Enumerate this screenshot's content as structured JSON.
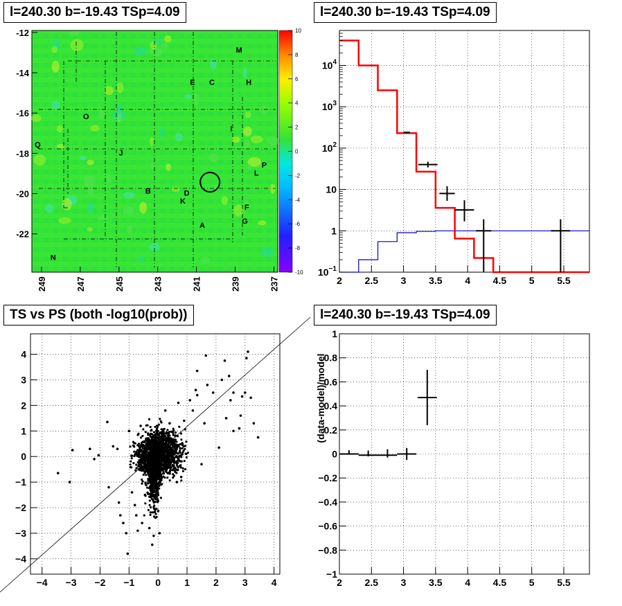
{
  "panels": {
    "map_title": "l=240.30 b=-19.43 TSp=4.09",
    "spectrum_title": "l=240.30 b=-19.43 TSp=4.09",
    "scatter_title": "TS vs PS (both -log10(prob))",
    "residual_title": "l=240.30 b=-19.43 TSp=4.09"
  },
  "chart_data": [
    {
      "type": "heatmap",
      "title": "l=240.30 b=-19.43 TSp=4.09",
      "xlim": [
        249.5,
        236.8
      ],
      "ylim": [
        -23.9,
        -11.9
      ],
      "x_ticks": [
        "249",
        "247",
        "245",
        "243",
        "241",
        "239",
        "237"
      ],
      "y_ticks": [
        "-12",
        "-14",
        "-16",
        "-18",
        "-20",
        "-22"
      ],
      "colorbar": {
        "range": [
          -10,
          10
        ],
        "ticks": [
          "10",
          "8",
          "6",
          "4",
          "2",
          "0",
          "-2",
          "-4",
          "-6",
          "-8",
          "-10"
        ]
      },
      "colors": {
        "background": "#32e632",
        "circle": "#000000"
      },
      "marker_circle": {
        "l": 240.3,
        "b": -19.43
      },
      "sources": [
        {
          "label": "M",
          "l": 238.8,
          "b": -12.9
        },
        {
          "label": "E",
          "l": 241.2,
          "b": -14.5
        },
        {
          "label": "C",
          "l": 240.2,
          "b": -14.5
        },
        {
          "label": "H",
          "l": 238.3,
          "b": -14.5
        },
        {
          "label": "O",
          "l": 246.7,
          "b": -16.2
        },
        {
          "label": "I",
          "l": 239.2,
          "b": -16.8
        },
        {
          "label": "Q",
          "l": 249.2,
          "b": -17.6
        },
        {
          "label": "J",
          "l": 244.9,
          "b": -18.0
        },
        {
          "label": "P",
          "l": 237.5,
          "b": -18.6
        },
        {
          "label": "L",
          "l": 237.9,
          "b": -19.0
        },
        {
          "label": "B",
          "l": 243.5,
          "b": -19.9
        },
        {
          "label": "D",
          "l": 241.5,
          "b": -20.0
        },
        {
          "label": "K",
          "l": 241.7,
          "b": -20.4
        },
        {
          "label": "F",
          "l": 238.4,
          "b": -20.7
        },
        {
          "label": "G",
          "l": 238.5,
          "b": -21.4
        },
        {
          "label": "A",
          "l": 240.7,
          "b": -21.6
        },
        {
          "label": "N",
          "l": 248.4,
          "b": -23.2
        }
      ]
    },
    {
      "type": "line",
      "title": "l=240.30 b=-19.43 TSp=4.09",
      "xlim": [
        2.0,
        5.9
      ],
      "ylim": [
        0.1,
        70000
      ],
      "y_scale": "log",
      "x_ticks": [
        "2",
        "2.5",
        "3",
        "3.5",
        "4",
        "4.5",
        "5",
        "5.5"
      ],
      "y_ticks": [
        {
          "value": 0.1,
          "label": "10",
          "exp": "−1"
        },
        {
          "value": 1,
          "label": "1",
          "exp": ""
        },
        {
          "value": 10,
          "label": "10",
          "exp": ""
        },
        {
          "value": 100,
          "label": "10",
          "exp": "2"
        },
        {
          "value": 1000,
          "label": "10",
          "exp": "3"
        },
        {
          "value": 10000,
          "label": "10",
          "exp": "4"
        }
      ],
      "grid": true,
      "colors": {
        "model": "#ff0000",
        "background": "#0000cc",
        "data": "#000000"
      },
      "model_steps": {
        "edges": [
          2.0,
          2.3,
          2.6,
          2.9,
          3.2,
          3.5,
          3.8,
          4.1,
          4.4,
          5.9
        ],
        "values": [
          40000,
          10000,
          2500,
          230,
          27,
          3.6,
          0.65,
          0.22,
          0.1
        ]
      },
      "background_steps": {
        "edges": [
          2.0,
          2.3,
          2.6,
          2.9,
          3.2,
          3.5,
          3.8,
          4.1,
          4.4,
          5.9
        ],
        "values": [
          0.1,
          0.2,
          0.55,
          0.9,
          0.97,
          1.0,
          1.0,
          1.0,
          1.0
        ]
      },
      "data_points": [
        {
          "x": 3.05,
          "y": 240,
          "xerr": 0.05,
          "ylo": 235,
          "yhi": 245
        },
        {
          "x": 3.38,
          "y": 40,
          "xerr": 0.15,
          "ylo": 34,
          "yhi": 47
        },
        {
          "x": 3.68,
          "y": 8.0,
          "xerr": 0.12,
          "ylo": 5.3,
          "yhi": 12
        },
        {
          "x": 3.95,
          "y": 3.2,
          "xerr": 0.15,
          "ylo": 1.7,
          "yhi": 5.5
        },
        {
          "x": 4.25,
          "y": 1.0,
          "xerr": 0.12,
          "ylo": 0.1,
          "yhi": 1.9
        },
        {
          "x": 5.45,
          "y": 1.0,
          "xerr": 0.15,
          "ylo": 0.1,
          "yhi": 1.9
        }
      ]
    },
    {
      "type": "scatter",
      "title": "TS vs PS (both -log10(prob))",
      "xlim": [
        -4.4,
        4.2
      ],
      "ylim": [
        -4.6,
        4.8
      ],
      "x_ticks": [
        "−4",
        "−3",
        "−2",
        "−1",
        "0",
        "1",
        "2",
        "3",
        "4"
      ],
      "y_ticks": [
        "4",
        "3",
        "2",
        "1",
        "0",
        "−1",
        "−2",
        "−3",
        "−4"
      ],
      "grid": true,
      "reference_line": "y = x",
      "colors": {
        "points": "#000000"
      },
      "points": [
        [
          -3.45,
          -0.65
        ],
        [
          -2.95,
          0.25
        ],
        [
          -3.05,
          -1.0
        ],
        [
          -2.35,
          0.3
        ],
        [
          -2.2,
          -0.1
        ],
        [
          -2.05,
          0.05
        ],
        [
          -1.75,
          1.35
        ],
        [
          -1.55,
          0.4
        ],
        [
          -1.4,
          0.3
        ],
        [
          -1.35,
          -1.8
        ],
        [
          -1.3,
          -2.3
        ],
        [
          -1.2,
          -2.6
        ],
        [
          -1.1,
          -3.0
        ],
        [
          -1.05,
          -3.8
        ],
        [
          -0.9,
          -1.4
        ],
        [
          -0.75,
          -2.3
        ],
        [
          -0.7,
          -2.9
        ],
        [
          -0.55,
          -2.6
        ],
        [
          -0.2,
          -3.45
        ],
        [
          -0.45,
          -1.5
        ],
        [
          0.05,
          -3.0
        ],
        [
          0.4,
          1.3
        ],
        [
          0.65,
          -1.0
        ],
        [
          0.9,
          1.4
        ],
        [
          1.2,
          1.8
        ],
        [
          1.3,
          2.6
        ],
        [
          1.35,
          3.35
        ],
        [
          1.35,
          2.4
        ],
        [
          1.6,
          1.3
        ],
        [
          1.7,
          2.8
        ],
        [
          1.65,
          3.95
        ],
        [
          2.1,
          0.35
        ],
        [
          2.3,
          3.75
        ],
        [
          2.35,
          1.5
        ],
        [
          2.45,
          3.15
        ],
        [
          2.5,
          2.2
        ],
        [
          2.6,
          1.0
        ],
        [
          2.8,
          1.1
        ],
        [
          2.85,
          1.6
        ],
        [
          2.9,
          2.35
        ],
        [
          3.0,
          2.5
        ],
        [
          3.05,
          3.85
        ],
        [
          3.1,
          4.1
        ],
        [
          3.2,
          2.3
        ],
        [
          3.3,
          1.3
        ],
        [
          3.45,
          0.75
        ],
        [
          2.6,
          2.5
        ],
        [
          2.2,
          3.0
        ],
        [
          1.9,
          2.5
        ],
        [
          1.1,
          2.2
        ],
        [
          -0.15,
          -3.1
        ],
        [
          -0.3,
          -2.8
        ],
        [
          0.8,
          -0.8
        ],
        [
          1.5,
          -0.3
        ],
        [
          -1.7,
          -1.2
        ],
        [
          -0.6,
          1.2
        ],
        [
          -1.0,
          1.0
        ],
        [
          -0.8,
          -1.9
        ],
        [
          0.25,
          1.8
        ],
        [
          0.7,
          2.1
        ]
      ],
      "dense_cluster": {
        "x_center": 0.0,
        "y_center": 0.0,
        "spread_x": 0.55,
        "spread_y": 0.55
      }
    },
    {
      "type": "scatter",
      "title": "l=240.30 b=-19.43 TSp=4.09",
      "ylabel": "(data-model)/model",
      "xlim": [
        2.0,
        5.9
      ],
      "ylim": [
        -1.0,
        1.0
      ],
      "x_ticks": [
        "2",
        "2.5",
        "3",
        "3.5",
        "4",
        "4.5",
        "5",
        "5.5"
      ],
      "y_ticks": [
        "1",
        "0.8",
        "0.6",
        "0.4",
        "0.2",
        "0",
        "−0.2",
        "−0.4",
        "−0.6",
        "−0.8",
        "−1"
      ],
      "grid": true,
      "colors": {
        "points": "#000000"
      },
      "points": [
        {
          "x": 2.15,
          "y": 0.0,
          "xerr": 0.15,
          "yerr": 0.003
        },
        {
          "x": 2.45,
          "y": -0.01,
          "xerr": 0.15,
          "yerr": 0.01
        },
        {
          "x": 2.75,
          "y": -0.01,
          "xerr": 0.15,
          "yerr": 0.02
        },
        {
          "x": 3.05,
          "y": 0.0,
          "xerr": 0.15,
          "yerr": 0.05
        },
        {
          "x": 3.37,
          "y": 0.47,
          "xerr": 0.15,
          "yerr": 0.23
        }
      ]
    }
  ]
}
